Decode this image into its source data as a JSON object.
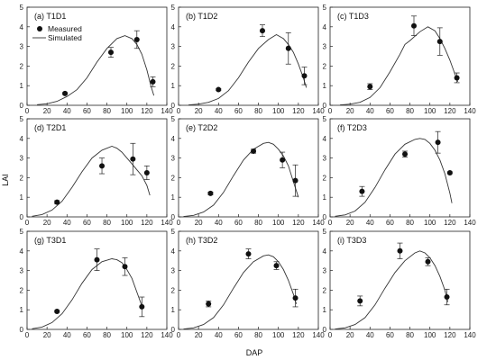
{
  "figure": {
    "xlabel": "DAP",
    "ylabel": "LAI"
  },
  "legend": {
    "measured": "Measured",
    "simulated": "Simulated"
  },
  "chart_data": [
    {
      "id": "T1D1",
      "title": "(a) T1D1",
      "type": "line+scatter",
      "xlim": [
        0,
        140
      ],
      "ylim": [
        0,
        5
      ],
      "xticks": [
        0,
        20,
        40,
        60,
        80,
        100,
        120,
        140
      ],
      "yticks": [
        0,
        1,
        2,
        3,
        4,
        5
      ],
      "simulated": {
        "x": [
          10,
          20,
          30,
          40,
          50,
          60,
          70,
          80,
          90,
          98,
          105,
          110,
          115,
          120,
          124,
          127
        ],
        "y": [
          0.03,
          0.08,
          0.2,
          0.45,
          0.8,
          1.4,
          2.2,
          2.9,
          3.4,
          3.55,
          3.4,
          3.1,
          2.6,
          1.8,
          1.0,
          0.5
        ]
      },
      "measured": {
        "x": [
          38,
          84,
          110,
          126
        ],
        "y": [
          0.6,
          2.7,
          3.35,
          1.2
        ],
        "err": [
          0.05,
          0.25,
          0.45,
          0.25
        ]
      }
    },
    {
      "id": "T1D2",
      "title": "(b) T1D2",
      "type": "line+scatter",
      "xlim": [
        0,
        140
      ],
      "ylim": [
        0,
        5
      ],
      "xticks": [
        0,
        20,
        40,
        60,
        80,
        100,
        120,
        140
      ],
      "yticks": [
        0,
        1,
        2,
        3,
        4,
        5
      ],
      "simulated": {
        "x": [
          10,
          20,
          30,
          40,
          50,
          60,
          70,
          80,
          90,
          98,
          105,
          110,
          115,
          120,
          125,
          128
        ],
        "y": [
          0.02,
          0.06,
          0.15,
          0.35,
          0.75,
          1.4,
          2.2,
          2.9,
          3.35,
          3.6,
          3.4,
          3.1,
          2.7,
          2.1,
          1.4,
          0.9
        ]
      },
      "measured": {
        "x": [
          40,
          84,
          110,
          126
        ],
        "y": [
          0.8,
          3.8,
          2.9,
          1.5
        ],
        "err": [
          0.05,
          0.3,
          0.8,
          0.45
        ]
      }
    },
    {
      "id": "T1D3",
      "title": "(c) T1D3",
      "type": "line+scatter",
      "xlim": [
        0,
        140
      ],
      "ylim": [
        0,
        5
      ],
      "xticks": [
        0,
        20,
        40,
        60,
        80,
        100,
        120,
        140
      ],
      "yticks": [
        0,
        1,
        2,
        3,
        4,
        5
      ],
      "simulated": {
        "x": [
          10,
          20,
          30,
          40,
          50,
          60,
          70,
          75,
          80,
          90,
          98,
          105,
          110,
          115,
          120,
          125,
          128
        ],
        "y": [
          0.02,
          0.06,
          0.15,
          0.4,
          0.9,
          1.7,
          2.6,
          3.1,
          3.3,
          3.75,
          4.0,
          3.8,
          3.4,
          2.9,
          2.3,
          1.6,
          1.2
        ]
      },
      "measured": {
        "x": [
          40,
          84,
          110,
          127
        ],
        "y": [
          0.95,
          4.05,
          3.25,
          1.4
        ],
        "err": [
          0.15,
          0.5,
          0.7,
          0.25
        ]
      }
    },
    {
      "id": "T2D1",
      "title": "(d) T2D1",
      "type": "line+scatter",
      "xlim": [
        0,
        140
      ],
      "ylim": [
        0,
        5
      ],
      "xticks": [
        0,
        20,
        40,
        60,
        80,
        100,
        120,
        140
      ],
      "yticks": [
        0,
        1,
        2,
        3,
        4,
        5
      ],
      "simulated": {
        "x": [
          5,
          15,
          25,
          35,
          45,
          55,
          65,
          75,
          85,
          90,
          95,
          100,
          105,
          110,
          115,
          120,
          123
        ],
        "y": [
          0.03,
          0.12,
          0.35,
          0.8,
          1.5,
          2.3,
          3.0,
          3.4,
          3.6,
          3.5,
          3.3,
          3.0,
          2.7,
          2.4,
          2.1,
          1.6,
          1.1
        ]
      },
      "measured": {
        "x": [
          30,
          75,
          106,
          120
        ],
        "y": [
          0.75,
          2.6,
          2.95,
          2.25
        ],
        "err": [
          0.08,
          0.4,
          0.8,
          0.35
        ]
      }
    },
    {
      "id": "T2D2",
      "title": "(e) T2D2",
      "type": "line+scatter",
      "xlim": [
        0,
        140
      ],
      "ylim": [
        0,
        5
      ],
      "xticks": [
        0,
        20,
        40,
        60,
        80,
        100,
        120,
        140
      ],
      "yticks": [
        0,
        1,
        2,
        3,
        4,
        5
      ],
      "simulated": {
        "x": [
          5,
          15,
          25,
          35,
          45,
          55,
          65,
          75,
          85,
          90,
          95,
          100,
          105,
          110,
          115,
          120
        ],
        "y": [
          0.02,
          0.08,
          0.25,
          0.6,
          1.25,
          2.1,
          2.9,
          3.45,
          3.75,
          3.8,
          3.7,
          3.45,
          3.1,
          2.6,
          1.8,
          1.0
        ]
      },
      "measured": {
        "x": [
          32,
          75,
          104,
          117
        ],
        "y": [
          1.2,
          3.35,
          2.9,
          1.85
        ],
        "err": [
          0.07,
          0.1,
          0.4,
          0.8
        ]
      }
    },
    {
      "id": "T2D3",
      "title": "(f) T2D3",
      "type": "line+scatter",
      "xlim": [
        0,
        140
      ],
      "ylim": [
        0,
        5
      ],
      "xticks": [
        0,
        20,
        40,
        60,
        80,
        100,
        120,
        140
      ],
      "yticks": [
        0,
        1,
        2,
        3,
        4,
        5
      ],
      "simulated": {
        "x": [
          5,
          15,
          25,
          35,
          45,
          55,
          65,
          75,
          85,
          90,
          95,
          100,
          105,
          110,
          115,
          120,
          122
        ],
        "y": [
          0.03,
          0.1,
          0.3,
          0.75,
          1.5,
          2.4,
          3.2,
          3.7,
          3.95,
          4.0,
          3.95,
          3.75,
          3.4,
          2.9,
          2.2,
          1.2,
          0.7
        ]
      },
      "measured": {
        "x": [
          32,
          75,
          108,
          120
        ],
        "y": [
          1.3,
          3.2,
          3.8,
          2.25
        ],
        "err": [
          0.25,
          0.15,
          0.55,
          0.05
        ]
      }
    },
    {
      "id": "T3D1",
      "title": "(g) T3D1",
      "type": "line+scatter",
      "xlim": [
        0,
        140
      ],
      "ylim": [
        0,
        5
      ],
      "xticks": [
        0,
        20,
        40,
        60,
        80,
        100,
        120,
        140
      ],
      "yticks": [
        0,
        1,
        2,
        3,
        4,
        5
      ],
      "simulated": {
        "x": [
          5,
          15,
          25,
          35,
          45,
          55,
          65,
          75,
          85,
          90,
          95,
          100,
          105,
          110,
          115
        ],
        "y": [
          0.03,
          0.12,
          0.35,
          0.8,
          1.5,
          2.35,
          3.05,
          3.45,
          3.6,
          3.55,
          3.4,
          3.05,
          2.6,
          1.9,
          1.2
        ]
      },
      "measured": {
        "x": [
          30,
          70,
          98,
          115
        ],
        "y": [
          0.92,
          3.55,
          3.2,
          1.15
        ],
        "err": [
          0.05,
          0.55,
          0.45,
          0.5
        ]
      }
    },
    {
      "id": "T3D2",
      "title": "(h) T3D2",
      "type": "line+scatter",
      "xlim": [
        0,
        140
      ],
      "ylim": [
        0,
        5
      ],
      "xticks": [
        0,
        20,
        40,
        60,
        80,
        100,
        120,
        140
      ],
      "yticks": [
        0,
        1,
        2,
        3,
        4,
        5
      ],
      "simulated": {
        "x": [
          5,
          15,
          25,
          35,
          45,
          55,
          65,
          75,
          85,
          90,
          95,
          100,
          105,
          110,
          115,
          118
        ],
        "y": [
          0.02,
          0.08,
          0.25,
          0.6,
          1.25,
          2.1,
          2.9,
          3.45,
          3.75,
          3.8,
          3.7,
          3.45,
          3.05,
          2.5,
          1.8,
          1.3
        ]
      },
      "measured": {
        "x": [
          30,
          70,
          98,
          117
        ],
        "y": [
          1.3,
          3.85,
          3.25,
          1.6
        ],
        "err": [
          0.15,
          0.25,
          0.2,
          0.45
        ]
      }
    },
    {
      "id": "T3D3",
      "title": "(i) T3D3",
      "type": "line+scatter",
      "xlim": [
        0,
        140
      ],
      "ylim": [
        0,
        5
      ],
      "xticks": [
        0,
        20,
        40,
        60,
        80,
        100,
        120,
        140
      ],
      "yticks": [
        0,
        1,
        2,
        3,
        4,
        5
      ],
      "simulated": {
        "x": [
          5,
          15,
          25,
          35,
          45,
          55,
          65,
          75,
          85,
          90,
          95,
          100,
          105,
          110,
          115,
          118
        ],
        "y": [
          0.02,
          0.08,
          0.25,
          0.6,
          1.25,
          2.1,
          2.9,
          3.5,
          3.9,
          4.0,
          3.9,
          3.65,
          3.25,
          2.7,
          2.0,
          1.4
        ]
      },
      "measured": {
        "x": [
          30,
          70,
          98,
          117
        ],
        "y": [
          1.45,
          4.0,
          3.45,
          1.65
        ],
        "err": [
          0.25,
          0.4,
          0.2,
          0.4
        ]
      }
    }
  ]
}
